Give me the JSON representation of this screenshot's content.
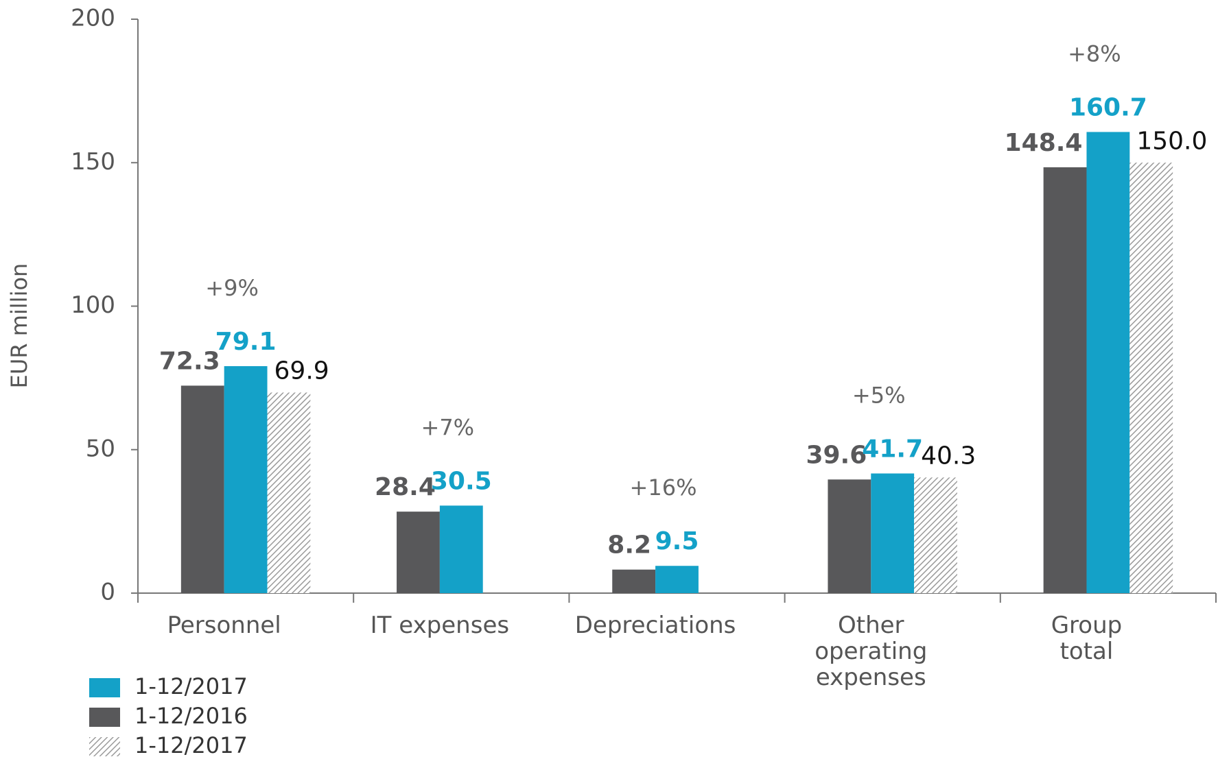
{
  "chart_data": {
    "type": "bar",
    "ylabel": "EUR million",
    "categories": [
      "Personnel",
      "IT expenses",
      "Depreciations",
      "Other\noperating\nexpenses",
      "Group\ntotal"
    ],
    "series": [
      {
        "name": "1-12/2016",
        "color": "#58585a",
        "values": [
          72.3,
          28.4,
          8.2,
          39.6,
          148.4
        ]
      },
      {
        "name": "1-12/2017",
        "color": "#14a1c8",
        "values": [
          79.1,
          30.5,
          9.5,
          41.7,
          160.7
        ]
      },
      {
        "name": "1-12/2017",
        "color": "#9a9a9a",
        "pattern": "hatch",
        "values": [
          69.9,
          null,
          null,
          40.3,
          150.0
        ],
        "value_labels": [
          "69.9",
          null,
          null,
          "40.3",
          "150.0"
        ]
      }
    ],
    "legend_order": [
      1,
      0,
      2
    ],
    "changes": [
      "+9%",
      "+7%",
      "+16%",
      "+5%",
      "+8%"
    ],
    "ylim": [
      0,
      200
    ],
    "yticks": [
      0,
      50,
      100,
      150,
      200
    ]
  }
}
